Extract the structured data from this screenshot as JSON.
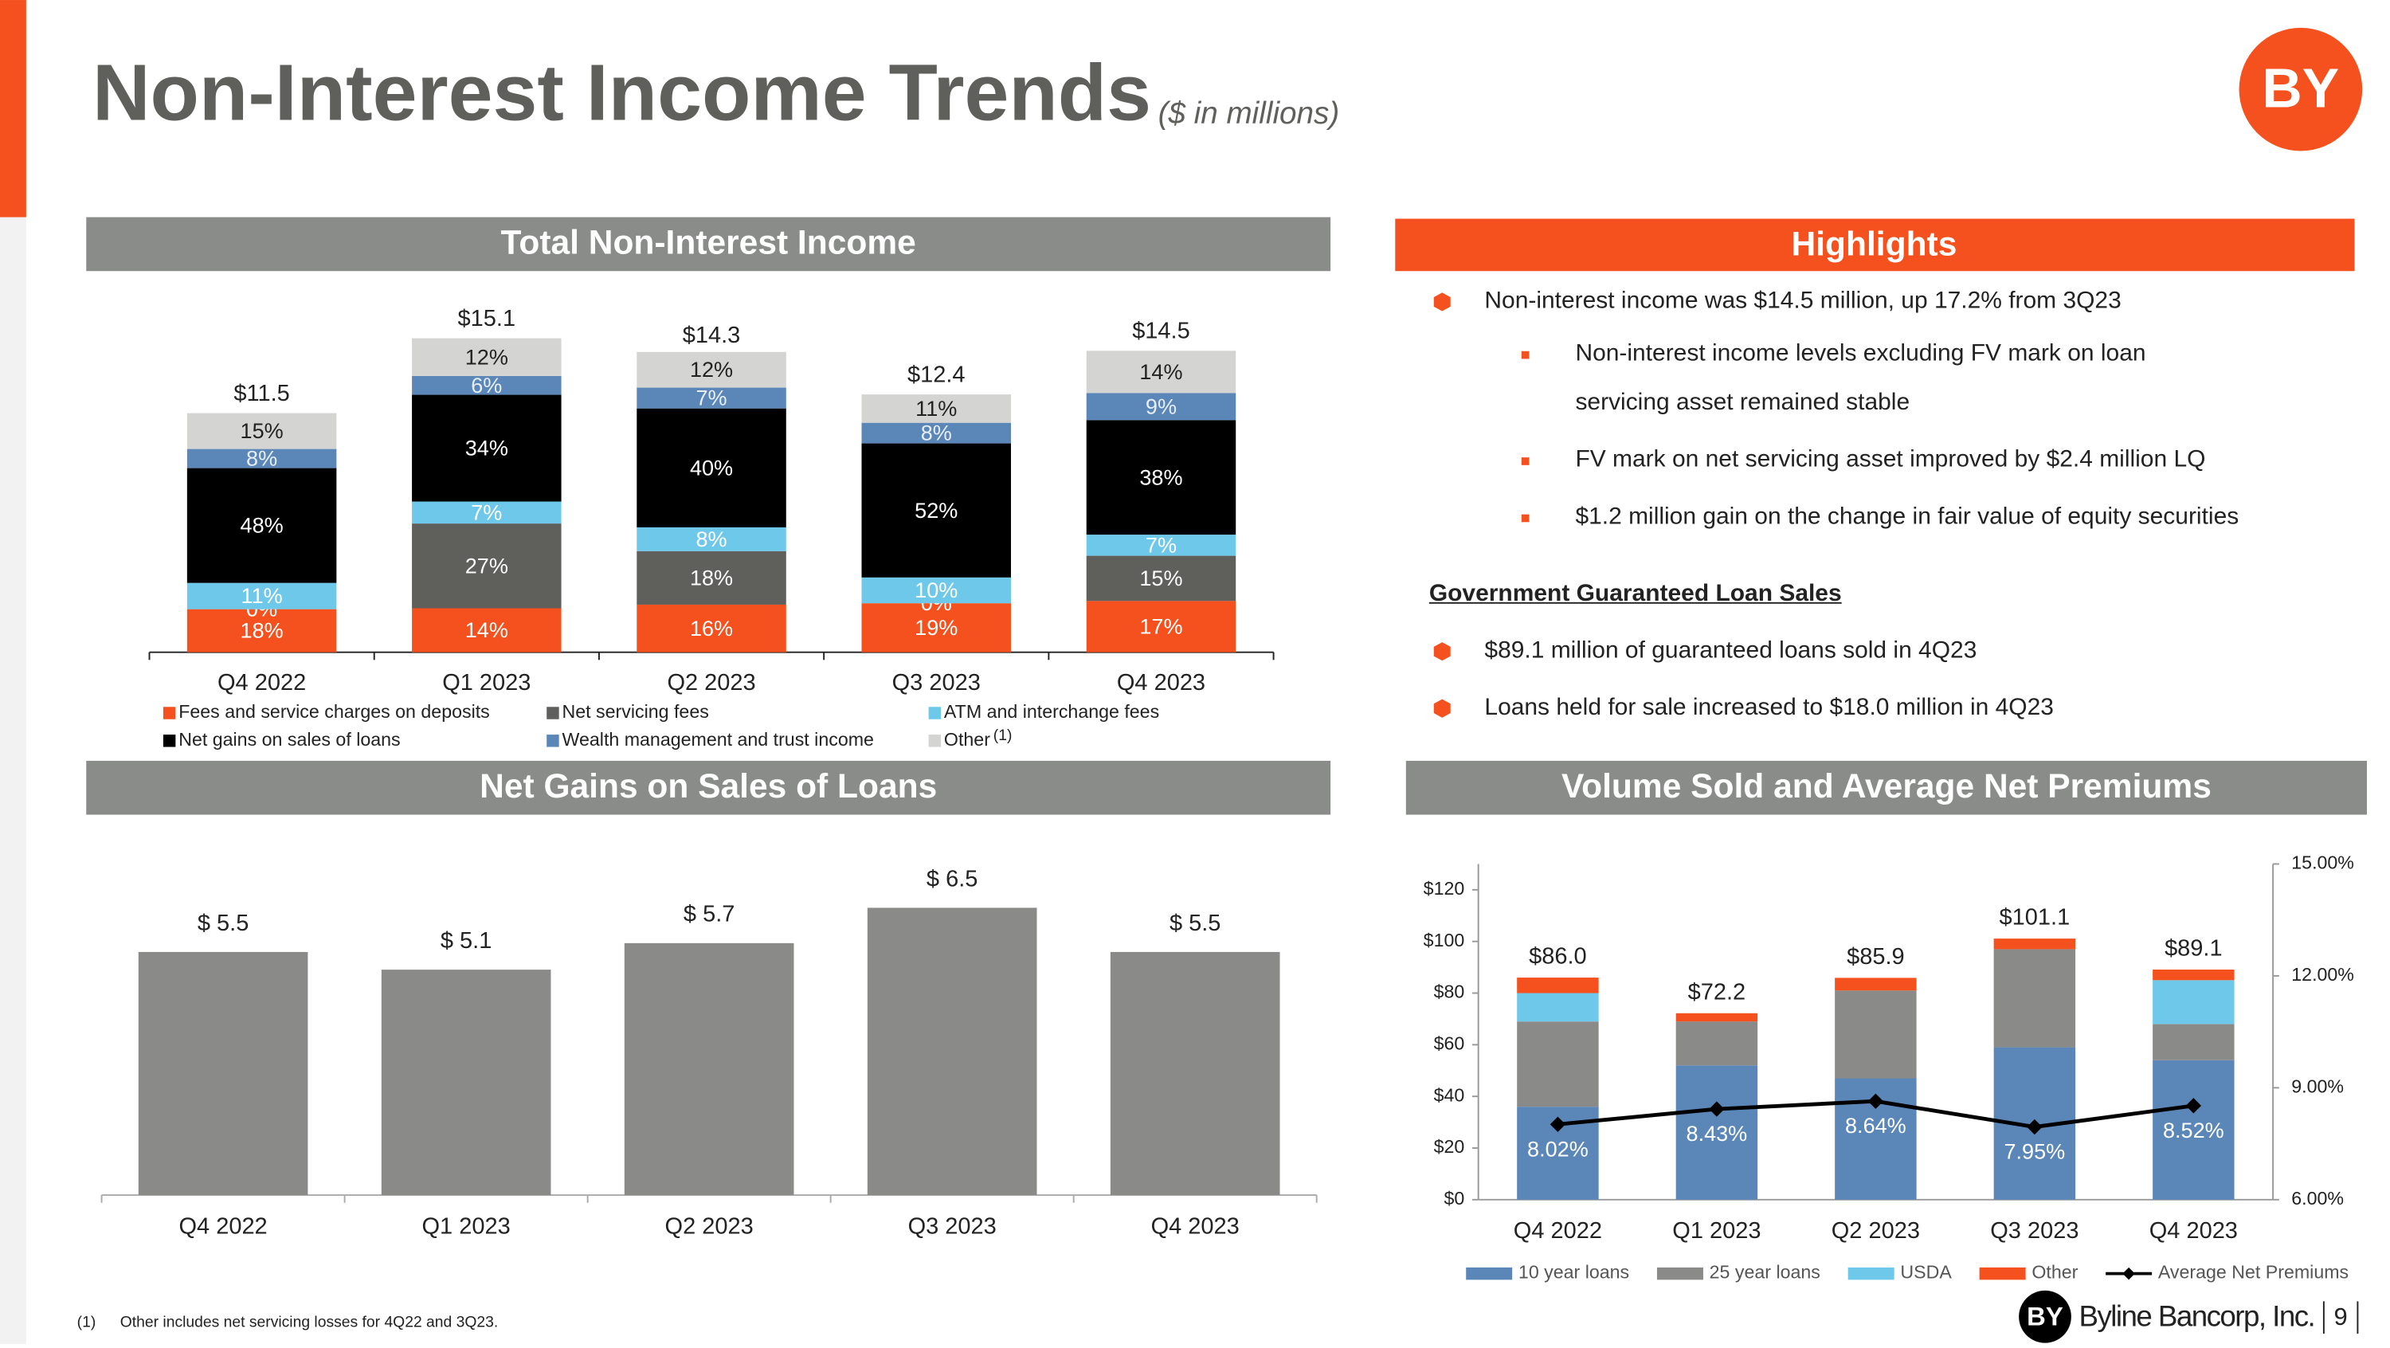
{
  "header": {
    "title": "Non-Interest Income Trends",
    "subtitle": "($ in millions)",
    "logo": "BY"
  },
  "highlights": {
    "title": "Highlights",
    "bullets": [
      "Non-interest income was $14.5 million, up 17.2% from 3Q23"
    ],
    "sub_bullets": [
      "Non-interest income levels excluding FV mark on loan servicing asset remained stable",
      "FV mark on net servicing asset improved by $2.4 million LQ",
      "$1.2 million gain on the change in fair value of equity securities"
    ],
    "section_title": "Government Guaranteed Loan Sales",
    "section_bullets": [
      "$89.1 million of guaranteed loans sold in 4Q23",
      "Loans held for sale increased to $18.0 million in 4Q23"
    ]
  },
  "footnote": {
    "marker": "(1)",
    "text": "Other includes net servicing losses for 4Q22 and 3Q23."
  },
  "footer": {
    "logo": "BY",
    "company": "Byline Bancorp, Inc.",
    "page": "9"
  },
  "chart_data": [
    {
      "type": "stacked_bar",
      "title": "Total Non-Interest Income",
      "categories": [
        "Q4 2022",
        "Q1 2023",
        "Q2 2023",
        "Q3 2023",
        "Q4 2023"
      ],
      "totals": {
        "values": [
          11.5,
          15.1,
          14.3,
          12.4,
          14.5
        ],
        "value_labels": [
          "$11.5",
          "$15.1",
          "$14.3",
          "$12.4",
          "$14.5"
        ]
      },
      "series": [
        {
          "name": "Fees and service charges on deposits",
          "color": "#f4511e",
          "label_color": "#ffffff",
          "values": [
            18,
            14,
            16,
            19,
            17
          ],
          "value_labels": [
            "18%",
            "14%",
            "16%",
            "19%",
            "17%"
          ]
        },
        {
          "name": "Net servicing fees",
          "color": "#5f5f5c",
          "label_color": "#ffffff",
          "values": [
            0,
            27,
            18,
            0,
            15
          ],
          "value_labels": [
            "0%",
            "27%",
            "18%",
            "0%",
            "15%"
          ]
        },
        {
          "name": "ATM and interchange fees",
          "color": "#6ec8ea",
          "label_color": "#ffffff",
          "values": [
            11,
            7,
            8,
            10,
            7
          ],
          "value_labels": [
            "11%",
            "7%",
            "8%",
            "10%",
            "7%"
          ]
        },
        {
          "name": "Net gains on sales of loans",
          "color": "#000000",
          "label_color": "#ffffff",
          "values": [
            48,
            34,
            40,
            52,
            38
          ],
          "value_labels": [
            "48%",
            "34%",
            "40%",
            "52%",
            "38%"
          ]
        },
        {
          "name": "Wealth management and trust income",
          "color": "#5b87b8",
          "label_color": "#e8eef6",
          "values": [
            8,
            6,
            7,
            8,
            9
          ],
          "value_labels": [
            "8%",
            "6%",
            "7%",
            "8%",
            "9%"
          ]
        },
        {
          "name": "Other",
          "color": "#d4d5d2",
          "label_color": "#222222",
          "values": [
            15,
            12,
            12,
            11,
            14
          ],
          "value_labels": [
            "15%",
            "12%",
            "12%",
            "11%",
            "14%"
          ]
        }
      ],
      "legend_note": "(1)"
    },
    {
      "type": "bar",
      "title": "Net Gains on Sales of Loans",
      "categories": [
        "Q4 2022",
        "Q1 2023",
        "Q2 2023",
        "Q3 2023",
        "Q4 2023"
      ],
      "values": [
        5.5,
        5.1,
        5.7,
        6.5,
        5.5
      ],
      "value_labels": [
        "$ 5.5",
        "$ 5.1",
        "$ 5.7",
        "$ 6.5",
        "$ 5.5"
      ],
      "color": "#8a8a88"
    },
    {
      "type": "combo",
      "title": "Volume Sold and Average Net Premiums",
      "categories": [
        "Q4 2022",
        "Q1 2023",
        "Q2 2023",
        "Q3 2023",
        "Q4 2023"
      ],
      "totals": {
        "values": [
          86.0,
          72.2,
          85.9,
          101.1,
          89.1
        ],
        "value_labels": [
          "$86.0",
          "$72.2",
          "$85.9",
          "$101.1",
          "$89.1"
        ]
      },
      "series": [
        {
          "name": "10 year loans",
          "color": "#5b87b8",
          "values": [
            36,
            52,
            47,
            59,
            54
          ]
        },
        {
          "name": "25 year loans",
          "color": "#8a8a88",
          "values": [
            33,
            17,
            34,
            38,
            14
          ]
        },
        {
          "name": "USDA",
          "color": "#6ec8ea",
          "values": [
            11,
            0,
            0,
            0,
            17
          ]
        },
        {
          "name": "Other",
          "color": "#f4511e",
          "values": [
            6,
            3.2,
            4.9,
            4.1,
            4.1
          ]
        },
        {
          "name": "Average Net Premiums",
          "type": "line",
          "axis": "y2",
          "color": "#000000",
          "values": [
            8.02,
            8.43,
            8.64,
            7.95,
            8.52
          ],
          "value_labels": [
            "8.02%",
            "8.43%",
            "8.64%",
            "7.95%",
            "8.52%"
          ]
        }
      ],
      "ylim": [
        0,
        130
      ],
      "yticks": [
        {
          "value": 0,
          "label": "$0"
        },
        {
          "value": 20,
          "label": "$20"
        },
        {
          "value": 40,
          "label": "$40"
        },
        {
          "value": 60,
          "label": "$60"
        },
        {
          "value": 80,
          "label": "$80"
        },
        {
          "value": 100,
          "label": "$100"
        },
        {
          "value": 120,
          "label": "$120"
        }
      ],
      "y2lim": [
        6,
        15
      ],
      "y2ticks": [
        {
          "value": 6,
          "label": "6.00%"
        },
        {
          "value": 9,
          "label": "9.00%"
        },
        {
          "value": 12,
          "label": "12.00%"
        },
        {
          "value": 15,
          "label": "15.00%"
        }
      ]
    }
  ]
}
